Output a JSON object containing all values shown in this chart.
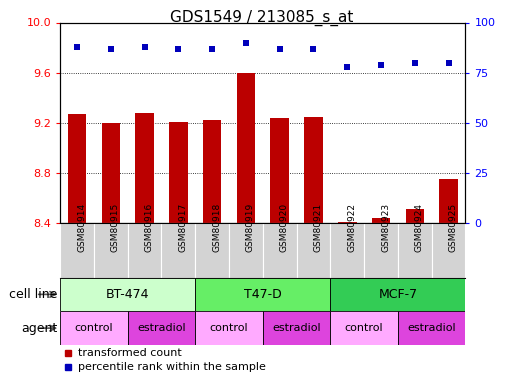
{
  "title": "GDS1549 / 213085_s_at",
  "samples": [
    "GSM80914",
    "GSM80915",
    "GSM80916",
    "GSM80917",
    "GSM80918",
    "GSM80919",
    "GSM80920",
    "GSM80921",
    "GSM80922",
    "GSM80923",
    "GSM80924",
    "GSM80925"
  ],
  "bar_values": [
    9.27,
    9.2,
    9.28,
    9.21,
    9.22,
    9.6,
    9.24,
    9.25,
    8.41,
    8.44,
    8.51,
    8.75
  ],
  "dot_values": [
    88,
    87,
    88,
    87,
    87,
    90,
    87,
    87,
    78,
    79,
    80,
    80
  ],
  "ylim_left": [
    8.4,
    10.0
  ],
  "ylim_right": [
    0,
    100
  ],
  "yticks_left": [
    8.4,
    8.8,
    9.2,
    9.6,
    10.0
  ],
  "yticks_right": [
    0,
    25,
    50,
    75,
    100
  ],
  "grid_values": [
    8.8,
    9.2,
    9.6
  ],
  "bar_color": "#bb0000",
  "dot_color": "#0000bb",
  "bar_width": 0.55,
  "cell_lines": [
    {
      "label": "BT-474",
      "start": 0,
      "end": 4,
      "color": "#ccffcc"
    },
    {
      "label": "T47-D",
      "start": 4,
      "end": 8,
      "color": "#66ee66"
    },
    {
      "label": "MCF-7",
      "start": 8,
      "end": 12,
      "color": "#33cc55"
    }
  ],
  "agents": [
    {
      "label": "control",
      "start": 0,
      "end": 2,
      "color": "#ffaaff"
    },
    {
      "label": "estradiol",
      "start": 2,
      "end": 4,
      "color": "#dd44dd"
    },
    {
      "label": "control",
      "start": 4,
      "end": 6,
      "color": "#ffaaff"
    },
    {
      "label": "estradiol",
      "start": 6,
      "end": 8,
      "color": "#dd44dd"
    },
    {
      "label": "control",
      "start": 8,
      "end": 10,
      "color": "#ffaaff"
    },
    {
      "label": "estradiol",
      "start": 10,
      "end": 12,
      "color": "#dd44dd"
    }
  ],
  "legend_bar_label": "transformed count",
  "legend_dot_label": "percentile rank within the sample",
  "cell_line_label": "cell line",
  "agent_label": "agent",
  "tick_fontsize": 8,
  "title_fontsize": 11,
  "sample_fontsize": 6.5,
  "row_fontsize": 9,
  "legend_fontsize": 8,
  "xtick_gray": "#d3d3d3",
  "border_color": "#888888"
}
